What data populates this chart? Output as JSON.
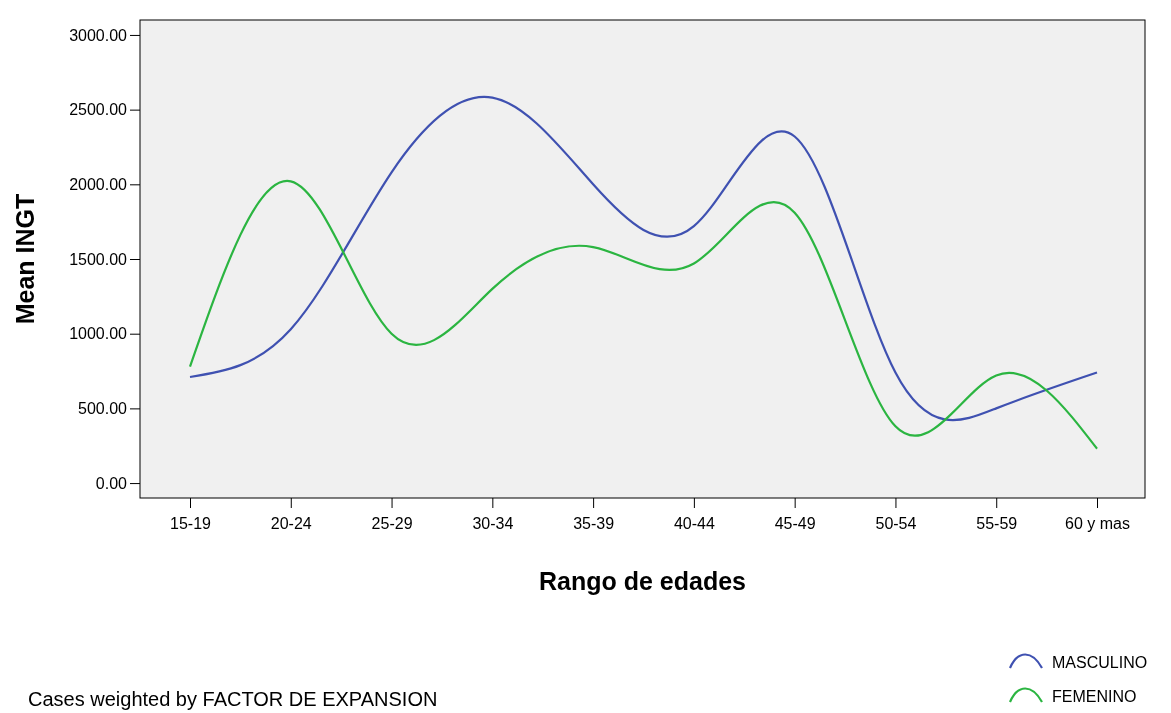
{
  "chart_data": {
    "type": "line",
    "xlabel": "Rango de edades",
    "ylabel": "Mean INGT",
    "categories": [
      "15-19",
      "20-24",
      "25-29",
      "30-34",
      "35-39",
      "40-44",
      "45-49",
      "50-54",
      "55-59",
      "60 y mas"
    ],
    "series": [
      {
        "name": "MASCULINO",
        "color": "#3f51b1",
        "values": [
          710,
          1030,
          2080,
          2580,
          2000,
          1720,
          2320,
          740,
          500,
          740
        ]
      },
      {
        "name": "FEMENINO",
        "color": "#2bb541",
        "values": [
          780,
          2020,
          1000,
          1300,
          1580,
          1470,
          1810,
          380,
          720,
          230
        ]
      }
    ],
    "ylim": [
      -100,
      3100
    ],
    "yticks": [
      {
        "value": 0,
        "label": "0.00"
      },
      {
        "value": 500,
        "label": "500.00"
      },
      {
        "value": 1000,
        "label": "1000.00"
      },
      {
        "value": 1500,
        "label": "1500.00"
      },
      {
        "value": 2000,
        "label": "2000.00"
      },
      {
        "value": 2500,
        "label": "2500.00"
      },
      {
        "value": 3000,
        "label": "3000.00"
      }
    ],
    "grid": false,
    "legend": "bottom right",
    "marker": "none",
    "line_style": "solid",
    "annotations": [
      "Cases weighted by FACTOR DE EXPANSION"
    ]
  }
}
